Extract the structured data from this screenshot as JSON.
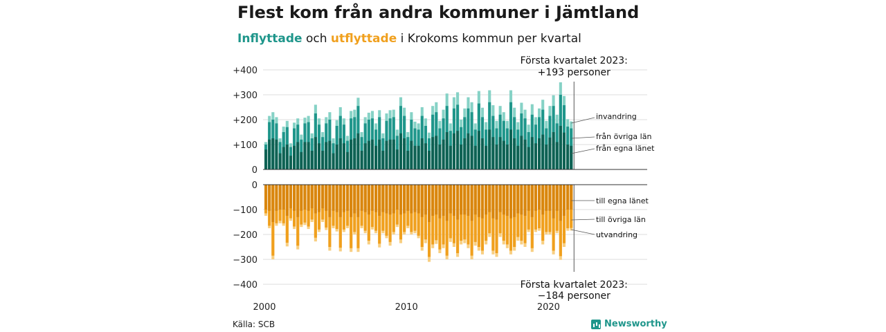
{
  "title": "Flest kom från andra kommuner i Jämtland",
  "subtitle": {
    "inflow_word": "Inflyttade",
    "and_word": "och",
    "outflow_word": "utflyttade",
    "rest": "i Krokoms kommun per kvartal"
  },
  "source": "Källa: SCB",
  "brand": "Newsworthy",
  "colors": {
    "in_county": "#0e6153",
    "in_other": "#1f968b",
    "in_immigration": "#86d2c6",
    "out_county": "#d9860e",
    "out_other": "#f0a01e",
    "out_emigration": "#f8cf82"
  },
  "chart_data": {
    "type": "bar",
    "stacked": true,
    "period": "quarterly",
    "x_start": "2000 Q1",
    "x_end": "2023 Q1",
    "x_ticks": [
      "2000",
      "2010",
      "2020"
    ],
    "inflow_ticks": [
      "+400",
      "+300",
      "+200",
      "+100",
      "0"
    ],
    "inflow_ylim": [
      0,
      400
    ],
    "outflow_ticks": [
      "0",
      "−100",
      "−200",
      "−300",
      "−400"
    ],
    "outflow_ylim": [
      -400,
      0
    ],
    "grid": true,
    "series_in_labels": {
      "immigration": "invandring",
      "other_counties": "från övriga län",
      "own_county": "från egna länet"
    },
    "series_out_labels": {
      "own_county": "till egna länet",
      "other_counties": "till övriga län",
      "emigration": "utvandring"
    },
    "annotation_top": {
      "line1": "Första kvartalet 2023:",
      "line2": "+193 personer"
    },
    "annotation_bottom": {
      "line1": "Första kvartalet 2023:",
      "line2": "−184 personer"
    },
    "inflow_total": [
      110,
      215,
      230,
      210,
      125,
      172,
      195,
      105,
      188,
      205,
      140,
      208,
      215,
      145,
      260,
      205,
      150,
      210,
      230,
      125,
      198,
      250,
      205,
      135,
      235,
      240,
      288,
      150,
      210,
      228,
      235,
      185,
      238,
      145,
      225,
      238,
      240,
      160,
      290,
      248,
      150,
      230,
      192,
      185,
      250,
      205,
      148,
      255,
      270,
      195,
      240,
      305,
      185,
      290,
      310,
      200,
      245,
      290,
      270,
      185,
      315,
      248,
      190,
      318,
      258,
      195,
      255,
      230,
      195,
      318,
      248,
      190,
      268,
      240,
      180,
      262,
      210,
      245,
      280,
      195,
      255,
      298,
      220,
      350,
      295,
      202,
      193
    ],
    "inflow_own": [
      80,
      120,
      125,
      120,
      65,
      90,
      100,
      55,
      95,
      110,
      70,
      110,
      110,
      75,
      130,
      105,
      75,
      110,
      115,
      65,
      100,
      125,
      105,
      70,
      120,
      125,
      145,
      75,
      105,
      115,
      120,
      95,
      120,
      75,
      115,
      120,
      120,
      80,
      145,
      125,
      75,
      115,
      95,
      95,
      125,
      105,
      75,
      130,
      135,
      100,
      120,
      150,
      95,
      145,
      155,
      100,
      125,
      145,
      135,
      95,
      155,
      125,
      95,
      160,
      130,
      100,
      130,
      115,
      100,
      160,
      125,
      95,
      135,
      120,
      90,
      130,
      105,
      125,
      140,
      100,
      128,
      150,
      110,
      175,
      148,
      100,
      95
    ],
    "inflow_other": [
      20,
      70,
      75,
      65,
      45,
      60,
      70,
      35,
      70,
      70,
      50,
      75,
      80,
      50,
      95,
      75,
      55,
      75,
      85,
      40,
      75,
      90,
      75,
      45,
      85,
      85,
      110,
      55,
      80,
      85,
      85,
      65,
      90,
      50,
      80,
      85,
      90,
      55,
      110,
      90,
      55,
      85,
      70,
      65,
      90,
      70,
      50,
      90,
      95,
      65,
      85,
      105,
      60,
      100,
      105,
      70,
      85,
      100,
      95,
      65,
      110,
      85,
      65,
      110,
      85,
      65,
      90,
      80,
      65,
      110,
      85,
      65,
      90,
      85,
      60,
      90,
      75,
      85,
      100,
      65,
      87,
      105,
      75,
      125,
      110,
      72,
      70
    ],
    "outflow_total": [
      -125,
      -175,
      -300,
      -165,
      -155,
      -165,
      -248,
      -145,
      -178,
      -260,
      -170,
      -162,
      -178,
      -150,
      -228,
      -190,
      -150,
      -182,
      -265,
      -175,
      -188,
      -268,
      -190,
      -175,
      -270,
      -200,
      -270,
      -175,
      -195,
      -240,
      -180,
      -195,
      -252,
      -195,
      -215,
      -245,
      -200,
      -170,
      -235,
      -200,
      -175,
      -200,
      -195,
      -215,
      -265,
      -235,
      -310,
      -255,
      -238,
      -275,
      -255,
      -300,
      -230,
      -250,
      -290,
      -240,
      -235,
      -255,
      -300,
      -245,
      -265,
      -280,
      -240,
      -210,
      -280,
      -290,
      -210,
      -240,
      -255,
      -280,
      -265,
      -225,
      -240,
      -250,
      -190,
      -270,
      -190,
      -185,
      -240,
      -200,
      -200,
      -280,
      -195,
      -302,
      -250,
      -185,
      -184
    ],
    "outflow_own": [
      -100,
      -105,
      -150,
      -105,
      -100,
      -100,
      -125,
      -95,
      -105,
      -130,
      -105,
      -100,
      -105,
      -95,
      -115,
      -110,
      -95,
      -105,
      -130,
      -105,
      -110,
      -130,
      -110,
      -105,
      -130,
      -115,
      -130,
      -105,
      -110,
      -120,
      -105,
      -110,
      -125,
      -110,
      -115,
      -120,
      -115,
      -100,
      -120,
      -115,
      -105,
      -115,
      -110,
      -115,
      -130,
      -120,
      -150,
      -125,
      -120,
      -135,
      -125,
      -145,
      -115,
      -125,
      -140,
      -120,
      -120,
      -125,
      -145,
      -120,
      -130,
      -135,
      -120,
      -110,
      -135,
      -140,
      -110,
      -120,
      -125,
      -135,
      -130,
      -115,
      -120,
      -125,
      -105,
      -130,
      -105,
      -100,
      -120,
      -105,
      -105,
      -135,
      -105,
      -145,
      -125,
      -100,
      -100
    ],
    "outflow_other": [
      -15,
      -60,
      -135,
      -50,
      -45,
      -55,
      -108,
      -40,
      -63,
      -115,
      -55,
      -52,
      -63,
      -45,
      -98,
      -70,
      -45,
      -67,
      -120,
      -60,
      -68,
      -123,
      -70,
      -60,
      -125,
      -75,
      -125,
      -60,
      -75,
      -105,
      -65,
      -75,
      -112,
      -75,
      -90,
      -110,
      -75,
      -60,
      -100,
      -75,
      -60,
      -75,
      -75,
      -90,
      -120,
      -100,
      -140,
      -115,
      -103,
      -125,
      -115,
      -140,
      -100,
      -110,
      -135,
      -105,
      -100,
      -115,
      -140,
      -110,
      -120,
      -130,
      -105,
      -85,
      -130,
      -135,
      -85,
      -105,
      -115,
      -130,
      -120,
      -95,
      -105,
      -110,
      -75,
      -125,
      -75,
      -75,
      -105,
      -85,
      -85,
      -130,
      -80,
      -142,
      -110,
      -75,
      -74
    ]
  }
}
